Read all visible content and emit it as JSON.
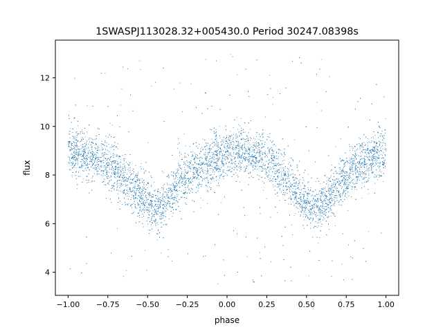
{
  "chart_data": {
    "type": "scatter",
    "title": "1SWASPJ113028.32+005430.0 Period 30247.08398s",
    "xlabel": "phase",
    "ylabel": "flux",
    "xlim": [
      -1.08,
      1.08
    ],
    "ylim": [
      3.05,
      13.55
    ],
    "x_ticks": [
      -1.0,
      -0.75,
      -0.5,
      -0.25,
      0.0,
      0.25,
      0.5,
      0.75,
      1.0
    ],
    "x_tick_labels": [
      "−1.00",
      "−0.75",
      "−0.50",
      "−0.25",
      "0.00",
      "0.25",
      "0.50",
      "0.75",
      "1.00"
    ],
    "y_ticks": [
      4,
      6,
      8,
      10,
      12
    ],
    "y_tick_labels": [
      "4",
      "6",
      "8",
      "10",
      "12"
    ],
    "grid": false,
    "legend": "none",
    "marker_color": "#1f77b4",
    "series": [
      {
        "x": [
          -1.0,
          -0.9,
          -0.8,
          -0.7,
          -0.6,
          -0.5,
          -0.45,
          -0.4,
          -0.3,
          -0.2,
          -0.1,
          0.0,
          0.1,
          0.2,
          0.3,
          0.4,
          0.5,
          0.55,
          0.6,
          0.7,
          0.8,
          0.9,
          1.0
        ],
        "y": [
          8.95,
          8.85,
          8.7,
          8.2,
          7.5,
          6.8,
          6.55,
          6.75,
          7.7,
          8.2,
          8.65,
          8.9,
          8.95,
          8.8,
          8.4,
          7.6,
          6.8,
          6.55,
          6.75,
          7.6,
          8.3,
          8.7,
          8.95
        ]
      }
    ]
  }
}
